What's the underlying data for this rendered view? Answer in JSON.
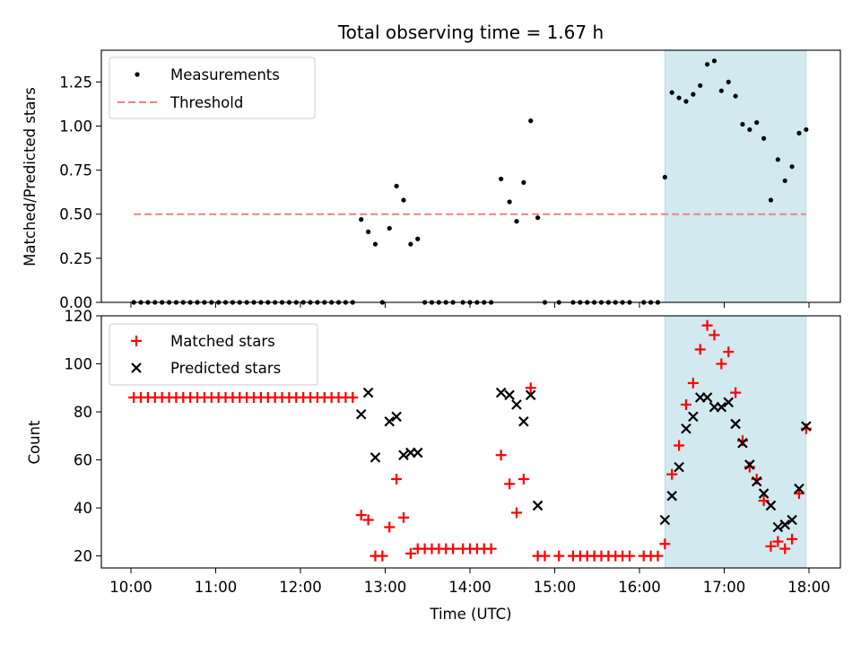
{
  "chart_data": {
    "title": "Total observing time = 1.67 h",
    "xlabel": "Time (UTC)",
    "x_ticks": [
      "10:00",
      "11:00",
      "12:00",
      "13:00",
      "14:00",
      "15:00",
      "16:00",
      "17:00",
      "18:00"
    ],
    "highlight_span": {
      "start": "16:18",
      "end": "17:58",
      "color": "#d2e9f0"
    },
    "panels": [
      {
        "type": "scatter",
        "ylabel": "Matched/Predicted stars",
        "ylim": [
          0,
          1.43
        ],
        "y_ticks": [
          "0.00",
          "0.25",
          "0.50",
          "0.75",
          "1.00",
          "1.25"
        ],
        "y_tick_values": [
          0,
          0.25,
          0.5,
          0.75,
          1.0,
          1.25
        ],
        "legend_position": "upper-left",
        "series": [
          {
            "name": "Measurements",
            "marker": "dot",
            "color": "#000000",
            "points": [
              [
                "10:02",
                0
              ],
              [
                "10:07",
                0
              ],
              [
                "10:12",
                0
              ],
              [
                "10:17",
                0
              ],
              [
                "10:22",
                0
              ],
              [
                "10:27",
                0
              ],
              [
                "10:32",
                0
              ],
              [
                "10:37",
                0
              ],
              [
                "10:42",
                0
              ],
              [
                "10:47",
                0
              ],
              [
                "10:52",
                0
              ],
              [
                "10:57",
                0
              ],
              [
                "11:02",
                0
              ],
              [
                "11:07",
                0
              ],
              [
                "11:12",
                0
              ],
              [
                "11:17",
                0
              ],
              [
                "11:22",
                0
              ],
              [
                "11:27",
                0
              ],
              [
                "11:32",
                0
              ],
              [
                "11:37",
                0
              ],
              [
                "11:42",
                0
              ],
              [
                "11:47",
                0
              ],
              [
                "11:52",
                0
              ],
              [
                "11:57",
                0
              ],
              [
                "12:02",
                0
              ],
              [
                "12:07",
                0
              ],
              [
                "12:12",
                0
              ],
              [
                "12:17",
                0
              ],
              [
                "12:22",
                0
              ],
              [
                "12:27",
                0
              ],
              [
                "12:32",
                0
              ],
              [
                "12:37",
                0
              ],
              [
                "12:43",
                0.47
              ],
              [
                "12:48",
                0.4
              ],
              [
                "12:53",
                0.33
              ],
              [
                "12:58",
                0
              ],
              [
                "13:03",
                0.42
              ],
              [
                "13:08",
                0.66
              ],
              [
                "13:13",
                0.58
              ],
              [
                "13:18",
                0.33
              ],
              [
                "13:23",
                0.36
              ],
              [
                "13:28",
                0
              ],
              [
                "13:33",
                0
              ],
              [
                "13:38",
                0
              ],
              [
                "13:43",
                0
              ],
              [
                "13:48",
                0
              ],
              [
                "13:55",
                0
              ],
              [
                "14:00",
                0
              ],
              [
                "14:05",
                0
              ],
              [
                "14:10",
                0
              ],
              [
                "14:15",
                0
              ],
              [
                "14:22",
                0.7
              ],
              [
                "14:28",
                0.57
              ],
              [
                "14:33",
                0.46
              ],
              [
                "14:38",
                0.68
              ],
              [
                "14:43",
                1.03
              ],
              [
                "14:48",
                0.48
              ],
              [
                "14:53",
                0
              ],
              [
                "15:03",
                0
              ],
              [
                "15:13",
                0
              ],
              [
                "15:18",
                0
              ],
              [
                "15:23",
                0
              ],
              [
                "15:28",
                0
              ],
              [
                "15:33",
                0
              ],
              [
                "15:38",
                0
              ],
              [
                "15:43",
                0
              ],
              [
                "15:48",
                0
              ],
              [
                "15:53",
                0
              ],
              [
                "16:03",
                0
              ],
              [
                "16:08",
                0
              ],
              [
                "16:13",
                0
              ],
              [
                "16:18",
                0.71
              ],
              [
                "16:23",
                1.19
              ],
              [
                "16:28",
                1.16
              ],
              [
                "16:33",
                1.14
              ],
              [
                "16:38",
                1.18
              ],
              [
                "16:43",
                1.23
              ],
              [
                "16:48",
                1.35
              ],
              [
                "16:53",
                1.37
              ],
              [
                "16:58",
                1.2
              ],
              [
                "17:03",
                1.25
              ],
              [
                "17:08",
                1.17
              ],
              [
                "17:13",
                1.01
              ],
              [
                "17:18",
                0.98
              ],
              [
                "17:23",
                1.02
              ],
              [
                "17:28",
                0.93
              ],
              [
                "17:33",
                0.58
              ],
              [
                "17:38",
                0.81
              ],
              [
                "17:43",
                0.69
              ],
              [
                "17:48",
                0.77
              ],
              [
                "17:53",
                0.96
              ],
              [
                "17:58",
                0.98
              ]
            ]
          },
          {
            "name": "Threshold",
            "marker": "dashed-line",
            "color": "#f08080",
            "value": 0.5,
            "x_range": [
              "10:02",
              "17:58"
            ]
          }
        ]
      },
      {
        "type": "scatter",
        "ylabel": "Count",
        "ylim": [
          15,
          120
        ],
        "y_ticks": [
          "20",
          "40",
          "60",
          "80",
          "100",
          "120"
        ],
        "y_tick_values": [
          20,
          40,
          60,
          80,
          100,
          120
        ],
        "legend_position": "upper-left",
        "series": [
          {
            "name": "Matched stars",
            "marker": "plus",
            "color": "#ff0000",
            "points": [
              [
                "10:02",
                86
              ],
              [
                "10:07",
                86
              ],
              [
                "10:12",
                86
              ],
              [
                "10:17",
                86
              ],
              [
                "10:22",
                86
              ],
              [
                "10:27",
                86
              ],
              [
                "10:32",
                86
              ],
              [
                "10:37",
                86
              ],
              [
                "10:42",
                86
              ],
              [
                "10:47",
                86
              ],
              [
                "10:52",
                86
              ],
              [
                "10:57",
                86
              ],
              [
                "11:02",
                86
              ],
              [
                "11:07",
                86
              ],
              [
                "11:12",
                86
              ],
              [
                "11:17",
                86
              ],
              [
                "11:22",
                86
              ],
              [
                "11:27",
                86
              ],
              [
                "11:32",
                86
              ],
              [
                "11:37",
                86
              ],
              [
                "11:42",
                86
              ],
              [
                "11:47",
                86
              ],
              [
                "11:52",
                86
              ],
              [
                "11:57",
                86
              ],
              [
                "12:02",
                86
              ],
              [
                "12:07",
                86
              ],
              [
                "12:12",
                86
              ],
              [
                "12:17",
                86
              ],
              [
                "12:22",
                86
              ],
              [
                "12:27",
                86
              ],
              [
                "12:32",
                86
              ],
              [
                "12:37",
                86
              ],
              [
                "12:43",
                37
              ],
              [
                "12:48",
                35
              ],
              [
                "12:53",
                20
              ],
              [
                "12:58",
                20
              ],
              [
                "13:03",
                32
              ],
              [
                "13:08",
                52
              ],
              [
                "13:13",
                36
              ],
              [
                "13:18",
                21
              ],
              [
                "13:23",
                23
              ],
              [
                "13:28",
                23
              ],
              [
                "13:33",
                23
              ],
              [
                "13:38",
                23
              ],
              [
                "13:43",
                23
              ],
              [
                "13:48",
                23
              ],
              [
                "13:55",
                23
              ],
              [
                "14:00",
                23
              ],
              [
                "14:05",
                23
              ],
              [
                "14:10",
                23
              ],
              [
                "14:15",
                23
              ],
              [
                "14:22",
                62
              ],
              [
                "14:28",
                50
              ],
              [
                "14:33",
                38
              ],
              [
                "14:38",
                52
              ],
              [
                "14:43",
                90
              ],
              [
                "14:48",
                20
              ],
              [
                "14:53",
                20
              ],
              [
                "15:03",
                20
              ],
              [
                "15:13",
                20
              ],
              [
                "15:18",
                20
              ],
              [
                "15:23",
                20
              ],
              [
                "15:28",
                20
              ],
              [
                "15:33",
                20
              ],
              [
                "15:38",
                20
              ],
              [
                "15:43",
                20
              ],
              [
                "15:48",
                20
              ],
              [
                "15:53",
                20
              ],
              [
                "16:03",
                20
              ],
              [
                "16:08",
                20
              ],
              [
                "16:13",
                20
              ],
              [
                "16:18",
                25
              ],
              [
                "16:23",
                54
              ],
              [
                "16:28",
                66
              ],
              [
                "16:33",
                83
              ],
              [
                "16:38",
                92
              ],
              [
                "16:43",
                106
              ],
              [
                "16:48",
                116
              ],
              [
                "16:53",
                112
              ],
              [
                "16:58",
                100
              ],
              [
                "17:03",
                105
              ],
              [
                "17:08",
                88
              ],
              [
                "17:13",
                68
              ],
              [
                "17:18",
                57
              ],
              [
                "17:23",
                52
              ],
              [
                "17:28",
                43
              ],
              [
                "17:33",
                24
              ],
              [
                "17:38",
                26
              ],
              [
                "17:43",
                23
              ],
              [
                "17:48",
                27
              ],
              [
                "17:53",
                46
              ],
              [
                "17:58",
                73
              ]
            ]
          },
          {
            "name": "Predicted stars",
            "marker": "x",
            "color": "#000000",
            "points": [
              [
                "12:43",
                79
              ],
              [
                "12:48",
                88
              ],
              [
                "12:53",
                61
              ],
              [
                "13:03",
                76
              ],
              [
                "13:08",
                78
              ],
              [
                "13:13",
                62
              ],
              [
                "13:18",
                63
              ],
              [
                "13:23",
                63
              ],
              [
                "14:22",
                88
              ],
              [
                "14:28",
                87
              ],
              [
                "14:33",
                83
              ],
              [
                "14:38",
                76
              ],
              [
                "14:43",
                87
              ],
              [
                "14:48",
                41
              ],
              [
                "16:18",
                35
              ],
              [
                "16:23",
                45
              ],
              [
                "16:28",
                57
              ],
              [
                "16:33",
                73
              ],
              [
                "16:38",
                78
              ],
              [
                "16:43",
                86
              ],
              [
                "16:48",
                86
              ],
              [
                "16:53",
                82
              ],
              [
                "16:58",
                82
              ],
              [
                "17:03",
                84
              ],
              [
                "17:08",
                75
              ],
              [
                "17:13",
                67
              ],
              [
                "17:18",
                58
              ],
              [
                "17:23",
                51
              ],
              [
                "17:28",
                46
              ],
              [
                "17:33",
                41
              ],
              [
                "17:38",
                32
              ],
              [
                "17:43",
                33
              ],
              [
                "17:48",
                35
              ],
              [
                "17:53",
                48
              ],
              [
                "17:58",
                74
              ]
            ]
          }
        ]
      }
    ]
  }
}
